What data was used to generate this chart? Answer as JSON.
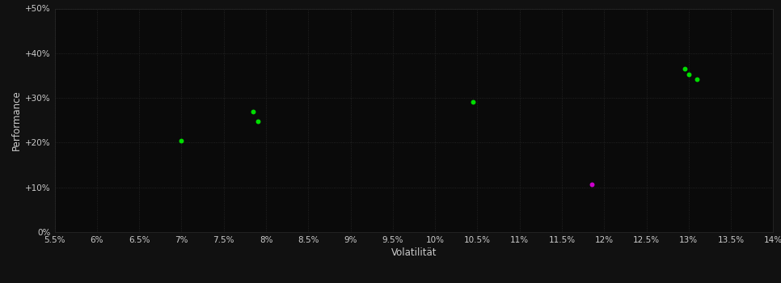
{
  "background_color": "#111111",
  "plot_bg_color": "#0a0a0a",
  "grid_color": "#2a2a2a",
  "xlabel": "Volatilität",
  "ylabel": "Performance",
  "xlim": [
    0.055,
    0.14
  ],
  "ylim": [
    0.0,
    0.5
  ],
  "xticks": [
    0.055,
    0.06,
    0.065,
    0.07,
    0.075,
    0.08,
    0.085,
    0.09,
    0.095,
    0.1,
    0.105,
    0.11,
    0.115,
    0.12,
    0.125,
    0.13,
    0.135,
    0.14
  ],
  "yticks": [
    0.0,
    0.1,
    0.2,
    0.3,
    0.4,
    0.5
  ],
  "ytick_labels": [
    "0%",
    "+10%",
    "+20%",
    "+30%",
    "+40%",
    "+50%"
  ],
  "xtick_labels": [
    "5.5%",
    "6%",
    "6.5%",
    "7%",
    "7.5%",
    "8%",
    "8.5%",
    "9%",
    "9.5%",
    "10%",
    "10.5%",
    "11%",
    "11.5%",
    "12%",
    "12.5%",
    "13%",
    "13.5%",
    "14%"
  ],
  "green_points": [
    [
      0.07,
      0.205
    ],
    [
      0.0785,
      0.27
    ],
    [
      0.079,
      0.248
    ],
    [
      0.1045,
      0.291
    ],
    [
      0.1295,
      0.365
    ],
    [
      0.13,
      0.352
    ],
    [
      0.131,
      0.342
    ]
  ],
  "magenta_points": [
    [
      0.1185,
      0.107
    ]
  ],
  "green_color": "#00dd00",
  "magenta_color": "#cc00cc",
  "marker_size": 18,
  "tick_color": "#cccccc",
  "label_color": "#cccccc",
  "grid_linestyle": ":",
  "grid_linewidth": 0.6,
  "tick_fontsize": 7.5,
  "label_fontsize": 8.5
}
